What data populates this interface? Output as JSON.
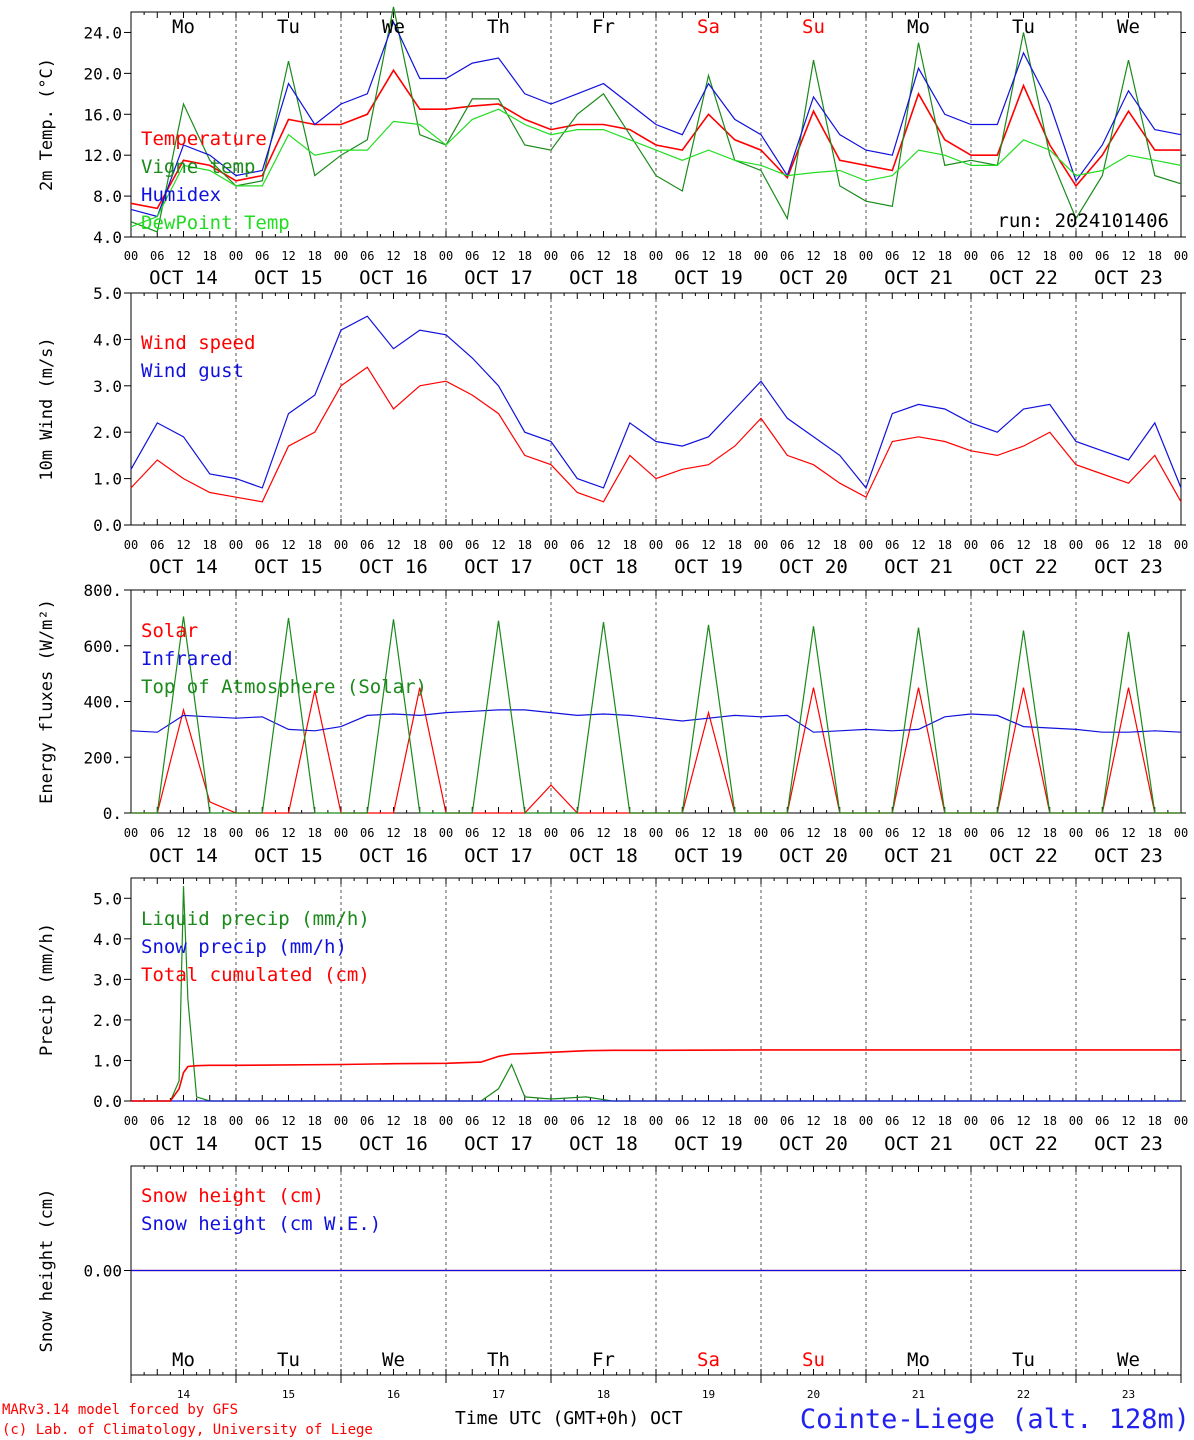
{
  "footer": {
    "model": "MARv3.14 model forced by GFS",
    "lab": "(c) Lab. of Climatology, University of Liege",
    "xtitle": "Time UTC (GMT+0h) OCT",
    "station": "Cointe-Liege (alt. 128m)"
  },
  "days": [
    "Mo",
    "Tu",
    "We",
    "Th",
    "Fr",
    "Sa",
    "Su",
    "Mo",
    "Tu",
    "We"
  ],
  "day_colors": [
    "#000000",
    "#000000",
    "#000000",
    "#000000",
    "#000000",
    "#ff0000",
    "#ff0000",
    "#000000",
    "#000000",
    "#000000"
  ],
  "dates": [
    "OCT 14",
    "OCT 15",
    "OCT 16",
    "OCT 17",
    "OCT 18",
    "OCT 19",
    "OCT 20",
    "OCT 21",
    "OCT 22",
    "OCT 23"
  ],
  "day_numbers": [
    "14",
    "15",
    "16",
    "17",
    "18",
    "19",
    "20",
    "21",
    "22",
    "23"
  ],
  "hour_ticks": [
    "00",
    "06",
    "12",
    "18"
  ],
  "chart_data": [
    {
      "type": "line",
      "ylabel": "2m Temp. (°C)",
      "ylim": [
        4,
        26
      ],
      "yticks": [
        "4.0",
        "8.0",
        "12.0",
        "16.0",
        "20.0",
        "24.0"
      ],
      "ytick_values": [
        4,
        8,
        12,
        16,
        20,
        24
      ],
      "run": "run: 2024101406",
      "show_days": true,
      "x_hours": [
        0,
        6,
        12,
        18,
        24,
        30,
        36,
        42,
        48,
        54,
        60,
        66,
        72,
        78,
        84,
        90,
        96,
        102,
        108,
        114,
        120,
        126,
        132,
        138,
        144,
        150,
        156,
        162,
        168,
        174,
        180,
        186,
        192,
        198,
        204,
        210,
        216,
        222,
        228,
        234,
        240
      ],
      "series": [
        {
          "name": "Temperature",
          "color": "#ff0000",
          "values": [
            7.3,
            6.8,
            11.5,
            11.0,
            9.5,
            10.0,
            15.5,
            15.0,
            15.0,
            16.0,
            20.3,
            16.5,
            16.5,
            16.8,
            17.0,
            15.5,
            14.5,
            15.0,
            15.0,
            14.5,
            13.0,
            12.5,
            16.0,
            13.5,
            12.5,
            9.8,
            16.3,
            11.5,
            11.0,
            10.5,
            18.0,
            13.5,
            12.0,
            12.0,
            18.8,
            13.0,
            9.0,
            12.0,
            16.3,
            12.5,
            12.5
          ]
        },
        {
          "name": "Vigne temp",
          "color": "#1a8a1a",
          "values": [
            5.5,
            4.5,
            17.0,
            11.5,
            9.0,
            9.5,
            21.2,
            10.0,
            12.0,
            13.5,
            26.5,
            14.0,
            13.0,
            17.5,
            17.5,
            13.0,
            12.5,
            16.0,
            18.0,
            14.0,
            10.0,
            8.5,
            19.8,
            11.5,
            10.5,
            5.8,
            21.3,
            9.0,
            7.5,
            7.0,
            23.0,
            11.0,
            11.5,
            11.0,
            24.0,
            12.0,
            5.8,
            10.0,
            21.3,
            10.0,
            9.2
          ]
        },
        {
          "name": "Humidex",
          "color": "#1111dd",
          "values": [
            6.7,
            6.0,
            13.0,
            12.0,
            10.0,
            10.5,
            19.0,
            15.0,
            17.0,
            18.0,
            25.0,
            19.5,
            19.5,
            21.0,
            21.5,
            18.0,
            17.0,
            18.0,
            19.0,
            17.0,
            15.0,
            14.0,
            19.0,
            15.5,
            14.0,
            10.0,
            17.7,
            14.0,
            12.5,
            12.0,
            20.5,
            16.0,
            15.0,
            15.0,
            22.0,
            17.0,
            9.5,
            13.0,
            18.3,
            14.5,
            14.0
          ]
        },
        {
          "name": "DewPoint Temp",
          "color": "#22dd22",
          "values": [
            5.0,
            6.0,
            11.0,
            10.5,
            9.0,
            9.0,
            14.0,
            12.0,
            12.5,
            12.5,
            15.3,
            15.0,
            13.0,
            15.5,
            16.5,
            15.0,
            14.0,
            14.5,
            14.5,
            13.5,
            12.5,
            11.5,
            12.5,
            11.5,
            11.0,
            10.0,
            10.3,
            10.5,
            9.5,
            10.0,
            12.5,
            12.0,
            11.0,
            11.0,
            13.5,
            12.5,
            10.0,
            10.5,
            12.0,
            11.5,
            11.0
          ]
        }
      ]
    },
    {
      "type": "line",
      "ylabel": "10m Wind (m/s)",
      "ylim": [
        0,
        5
      ],
      "yticks": [
        "0.0",
        "1.0",
        "2.0",
        "3.0",
        "4.0",
        "5.0"
      ],
      "ytick_values": [
        0,
        1,
        2,
        3,
        4,
        5
      ],
      "x_hours": [
        0,
        6,
        12,
        18,
        24,
        30,
        36,
        42,
        48,
        54,
        60,
        66,
        72,
        78,
        84,
        90,
        96,
        102,
        108,
        114,
        120,
        126,
        132,
        138,
        144,
        150,
        156,
        162,
        168,
        174,
        180,
        186,
        192,
        198,
        204,
        210,
        216,
        222,
        228,
        234,
        240
      ],
      "series": [
        {
          "name": "Wind speed",
          "color": "#ff0000",
          "values": [
            0.8,
            1.4,
            1.0,
            0.7,
            0.6,
            0.5,
            1.7,
            2.0,
            3.0,
            3.4,
            2.5,
            3.0,
            3.1,
            2.8,
            2.4,
            1.5,
            1.3,
            0.7,
            0.5,
            1.5,
            1.0,
            1.2,
            1.3,
            1.7,
            2.3,
            1.5,
            1.3,
            0.9,
            0.6,
            1.8,
            1.9,
            1.8,
            1.6,
            1.5,
            1.7,
            2.0,
            1.3,
            1.1,
            0.9,
            1.5,
            0.5
          ]
        },
        {
          "name": "Wind gust",
          "color": "#1111dd",
          "values": [
            1.2,
            2.2,
            1.9,
            1.1,
            1.0,
            0.8,
            2.4,
            2.8,
            4.2,
            4.5,
            3.8,
            4.2,
            4.1,
            3.6,
            3.0,
            2.0,
            1.8,
            1.0,
            0.8,
            2.2,
            1.8,
            1.7,
            1.9,
            2.5,
            3.1,
            2.3,
            1.9,
            1.5,
            0.8,
            2.4,
            2.6,
            2.5,
            2.2,
            2.0,
            2.5,
            2.6,
            1.8,
            1.6,
            1.4,
            2.2,
            0.8
          ]
        }
      ]
    },
    {
      "type": "line",
      "ylabel": "Energy fluxes (W/m²)",
      "ylim": [
        0,
        800
      ],
      "yticks": [
        "0.",
        "200.",
        "400.",
        "600.",
        "800."
      ],
      "ytick_values": [
        0,
        200,
        400,
        600,
        800
      ],
      "x_hours": [
        0,
        6,
        12,
        18,
        24,
        30,
        36,
        42,
        48,
        54,
        60,
        66,
        72,
        78,
        84,
        90,
        96,
        102,
        108,
        114,
        120,
        126,
        132,
        138,
        144,
        150,
        156,
        162,
        168,
        174,
        180,
        186,
        192,
        198,
        204,
        210,
        216,
        222,
        228,
        234,
        240
      ],
      "series": [
        {
          "name": "Solar",
          "color": "#ff0000",
          "values": [
            0,
            0,
            370,
            40,
            0,
            0,
            0,
            440,
            0,
            0,
            0,
            450,
            0,
            0,
            0,
            0,
            100,
            0,
            0,
            0,
            0,
            0,
            360,
            0,
            0,
            0,
            450,
            0,
            0,
            0,
            450,
            0,
            0,
            0,
            450,
            0,
            0,
            0,
            450,
            0,
            0
          ]
        },
        {
          "name": "Infrared",
          "color": "#1111dd",
          "values": [
            295,
            290,
            350,
            345,
            340,
            345,
            300,
            295,
            310,
            350,
            355,
            350,
            360,
            365,
            370,
            370,
            360,
            350,
            355,
            350,
            340,
            330,
            340,
            350,
            345,
            350,
            290,
            295,
            300,
            295,
            300,
            345,
            355,
            350,
            310,
            305,
            300,
            290,
            290,
            295,
            290
          ]
        },
        {
          "name": "Top of Atmosphere (Solar)",
          "color": "#1a8a1a",
          "values": [
            0,
            0,
            705,
            0,
            0,
            0,
            700,
            0,
            0,
            0,
            695,
            0,
            0,
            0,
            690,
            0,
            0,
            0,
            685,
            0,
            0,
            0,
            675,
            0,
            0,
            0,
            670,
            0,
            0,
            0,
            665,
            0,
            0,
            0,
            655,
            0,
            0,
            0,
            650,
            0,
            0
          ]
        }
      ]
    },
    {
      "type": "line",
      "ylabel": "Precip (mm/h)",
      "ylim": [
        0,
        5.5
      ],
      "yticks": [
        "0.0",
        "1.0",
        "2.0",
        "3.0",
        "4.0",
        "5.0"
      ],
      "ytick_values": [
        0,
        1,
        2,
        3,
        4,
        5
      ],
      "x_hours": [
        0,
        6,
        9,
        11,
        12,
        13,
        15,
        18,
        24,
        48,
        60,
        72,
        80,
        84,
        87,
        90,
        96,
        104,
        110,
        120,
        144,
        168,
        192,
        216,
        240
      ],
      "series": [
        {
          "name": "Liquid precip (mm/h)",
          "color": "#1a8a1a",
          "values": [
            0,
            0,
            0.0,
            0.5,
            5.3,
            2.5,
            0.1,
            0,
            0,
            0,
            0,
            0,
            0,
            0.3,
            0.9,
            0.1,
            0.05,
            0.1,
            0,
            0,
            0,
            0,
            0,
            0,
            0
          ]
        },
        {
          "name": "Snow precip (mm/h)",
          "color": "#1111dd",
          "values": [
            0,
            0,
            0,
            0,
            0,
            0,
            0,
            0,
            0,
            0,
            0,
            0,
            0,
            0,
            0,
            0,
            0,
            0,
            0,
            0,
            0,
            0,
            0,
            0,
            0
          ]
        },
        {
          "name": "Total cumulated (cm)",
          "color": "#ff0000",
          "values": [
            0,
            0,
            0,
            0.3,
            0.7,
            0.85,
            0.87,
            0.88,
            0.88,
            0.9,
            0.92,
            0.93,
            0.96,
            1.1,
            1.16,
            1.17,
            1.2,
            1.24,
            1.25,
            1.25,
            1.26,
            1.26,
            1.26,
            1.26,
            1.26
          ]
        }
      ]
    },
    {
      "type": "line",
      "ylabel": "Snow height (cm)",
      "ylim": [
        -1,
        1
      ],
      "yticks": [
        "0.00"
      ],
      "ytick_values": [
        0
      ],
      "show_days": true,
      "x_hours": [
        0,
        240
      ],
      "series": [
        {
          "name": "Snow height (cm)",
          "color": "#ff0000",
          "values": [
            0,
            0
          ]
        },
        {
          "name": "Snow height (cm W.E.)",
          "color": "#1111dd",
          "values": [
            0,
            0
          ]
        }
      ]
    }
  ],
  "legend_colors": {
    "temp": [
      "#ff0000",
      "#1a8a1a",
      "#1111dd",
      "#22dd22"
    ],
    "wind": [
      "#ff0000",
      "#1111dd"
    ],
    "energy": [
      "#ff0000",
      "#1111dd",
      "#1a8a1a"
    ],
    "precip": [
      "#1a8a1a",
      "#1111dd",
      "#ff0000"
    ],
    "snow": [
      "#ff0000",
      "#1111dd"
    ]
  }
}
